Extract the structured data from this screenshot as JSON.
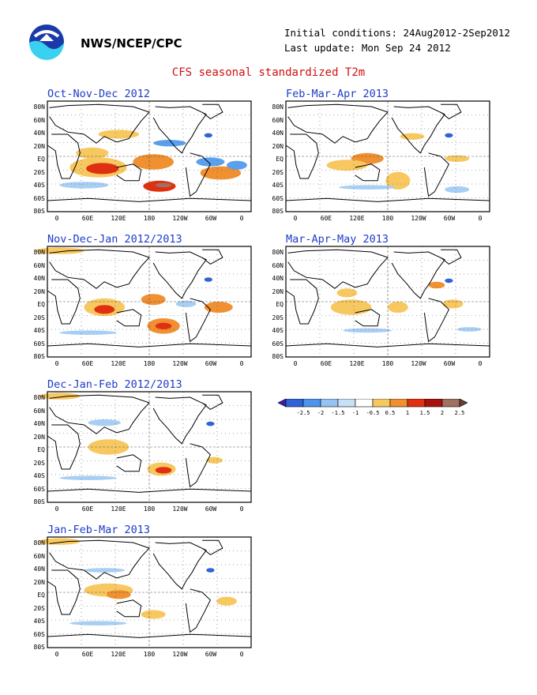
{
  "header": {
    "org": "NWS/NCEP/CPC",
    "initial_conditions": "Initial conditions: 24Aug2012-2Sep2012",
    "last_update": "Last update: Mon Sep 24 2012",
    "title": "CFS seasonal standardized T2m",
    "logo_icon": "noaa-logo-icon"
  },
  "axes": {
    "lat_ticks": [
      "80N",
      "60N",
      "40N",
      "20N",
      "EQ",
      "20S",
      "40S",
      "60S",
      "80S"
    ],
    "lon_ticks": [
      "0",
      "60E",
      "120E",
      "180",
      "120W",
      "60W",
      "0"
    ]
  },
  "panels": [
    {
      "title": "Oct-Nov-Dec 2012"
    },
    {
      "title": "Feb-Mar-Apr 2013"
    },
    {
      "title": "Nov-Dec-Jan 2012/2013"
    },
    {
      "title": "Mar-Apr-May 2013"
    },
    {
      "title": "Dec-Jan-Feb 2012/2013"
    },
    {
      "title": "Jan-Feb-Mar 2013"
    }
  ],
  "colorbar": {
    "labels": [
      "-2.5",
      "-2",
      "-1.5",
      "-1",
      "-0.5",
      "0.5",
      "1",
      "1.5",
      "2",
      "2.5"
    ],
    "colors": [
      "#3a1fb4",
      "#2f63d6",
      "#4c94ec",
      "#94c2f2",
      "#c8e0f8",
      "#ffffff",
      "#f8c860",
      "#f09030",
      "#e03010",
      "#a81010",
      "#a07060",
      "#6a4030"
    ]
  },
  "colors": {
    "warm1": "#f8c860",
    "warm2": "#f09030",
    "warm3": "#e03010",
    "cool1": "#a8cef4",
    "cool2": "#5aa0ec",
    "cool3": "#2f63d6"
  }
}
